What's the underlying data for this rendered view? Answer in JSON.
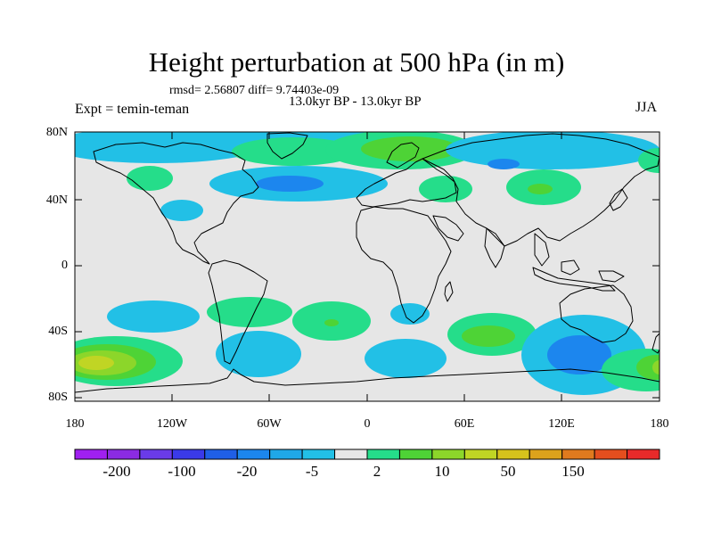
{
  "title": "Height perturbation at 500 hPa (in m)",
  "stats": "rmsd= 2.56807 diff= 9.74403e-09",
  "period": "13.0kyr BP - 13.0kyr BP",
  "experiment": "Expt = temin-teman",
  "season": "JJA",
  "y_axis_labels": [
    "80N",
    "40N",
    "0",
    "40S",
    "80S"
  ],
  "x_axis_labels": [
    "180",
    "120W",
    "60W",
    "0",
    "60E",
    "120E",
    "180"
  ],
  "colorbar": {
    "colors": [
      "#a020f0",
      "#8b2be2",
      "#6a3be8",
      "#3a3ae8",
      "#1f5fe6",
      "#1c86ee",
      "#1fa8e8",
      "#22c0e6",
      "#e6e6e6",
      "#25dd8a",
      "#4ed336",
      "#8cd62a",
      "#c0d524",
      "#d6c21c",
      "#dca21c",
      "#e07a1e",
      "#e44e1e",
      "#e82a2a"
    ],
    "labels": [
      "-200",
      "-100",
      "-20",
      "-5",
      "2",
      "10",
      "50",
      "150"
    ]
  },
  "map_colors": {
    "land_outline": "#000000",
    "background": "#e6e6e6",
    "neg_light": "#22c0e6",
    "neg_mid": "#1c86ee",
    "pos_light": "#25dd8a",
    "pos_mid": "#4ed336",
    "pos_strong": "#8cd62a",
    "pos_max": "#c0d524"
  }
}
